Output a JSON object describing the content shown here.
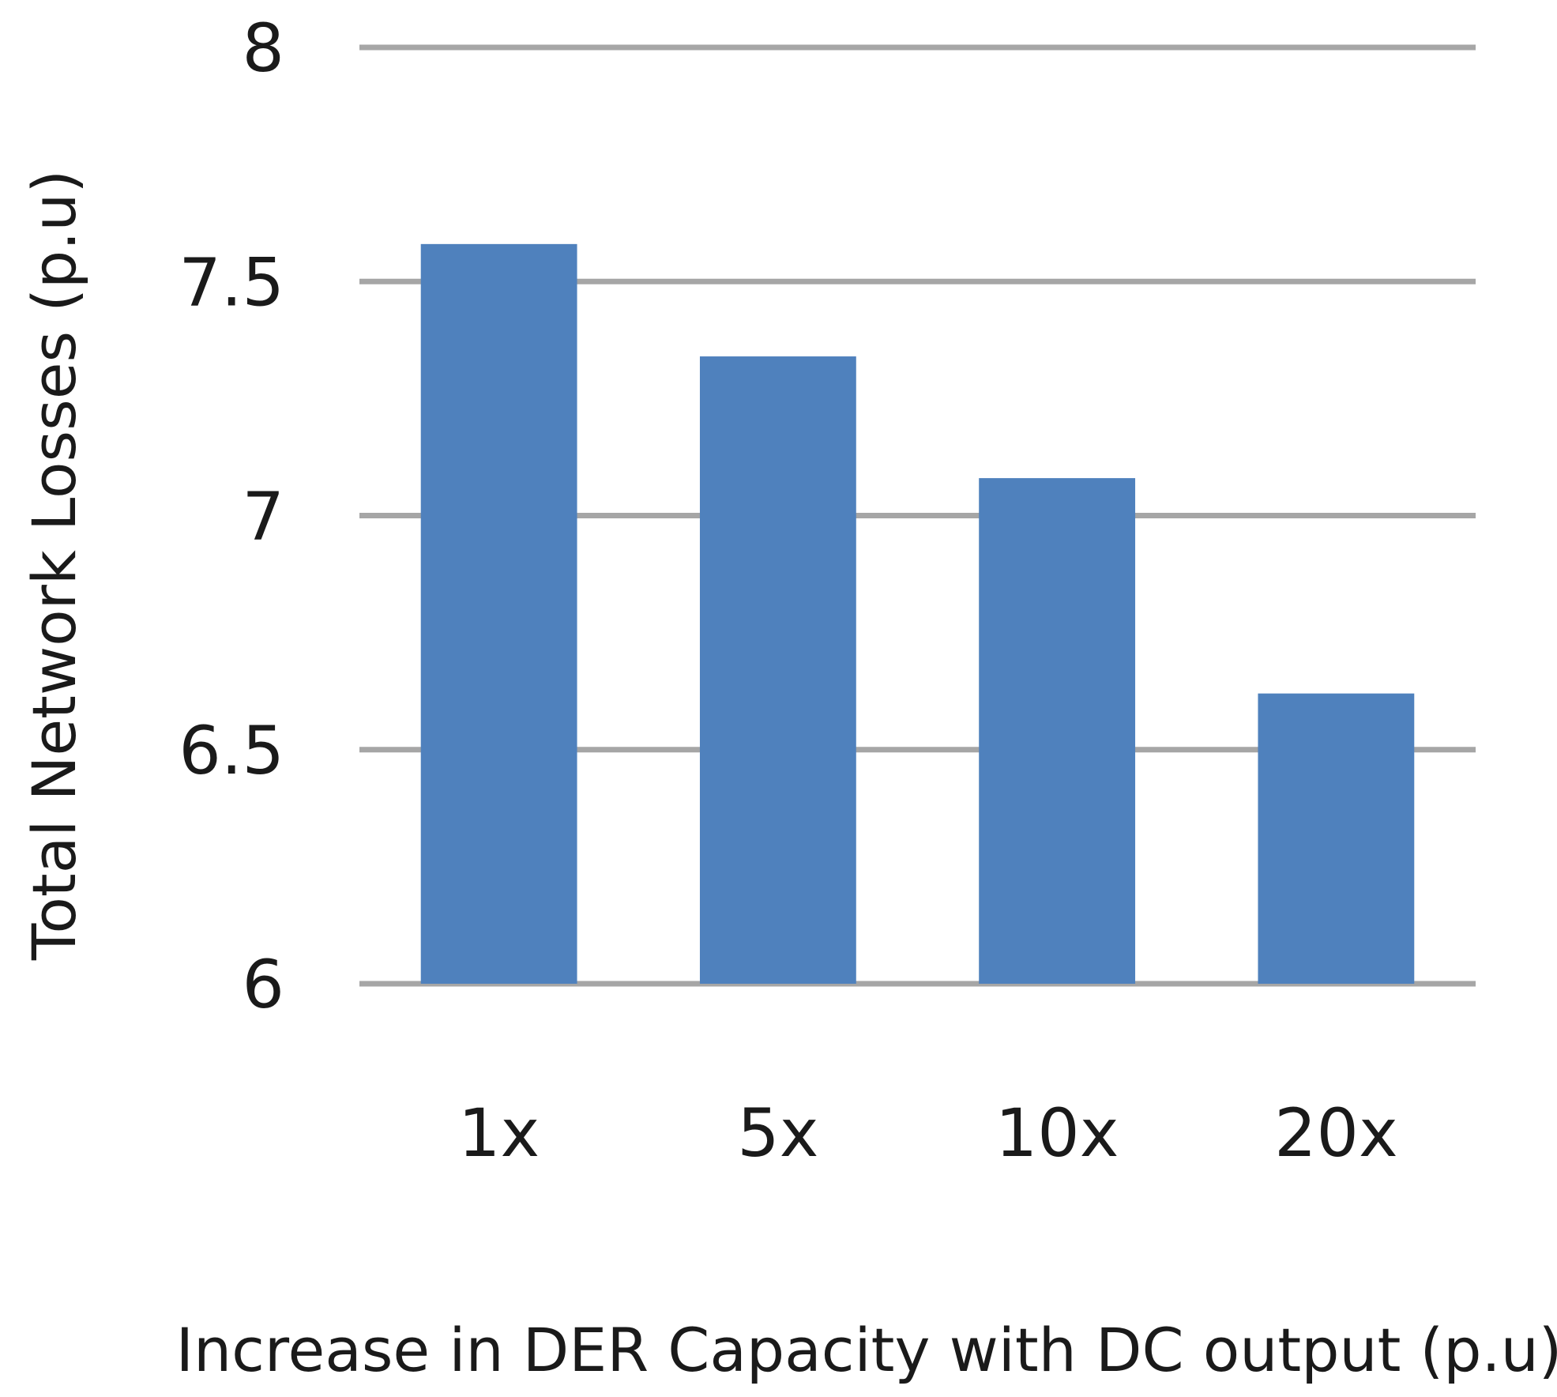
{
  "chart_data": {
    "type": "bar",
    "title": "",
    "categories": [
      "1x",
      "5x",
      "10x",
      "20x"
    ],
    "values": [
      7.58,
      7.34,
      7.08,
      6.62
    ],
    "xlabel": "Increase in DER Capacity with DC output (p.u)",
    "ylabel": "Total Network Losses (p.u)",
    "ylim": [
      6,
      8
    ],
    "yticks": [
      6,
      6.5,
      7,
      7.5,
      8
    ],
    "ytick_labels": [
      "6",
      "6.5",
      "7",
      "7.5",
      "8"
    ],
    "grid": true,
    "legend": "none",
    "bar_color": "#4f81bd"
  }
}
